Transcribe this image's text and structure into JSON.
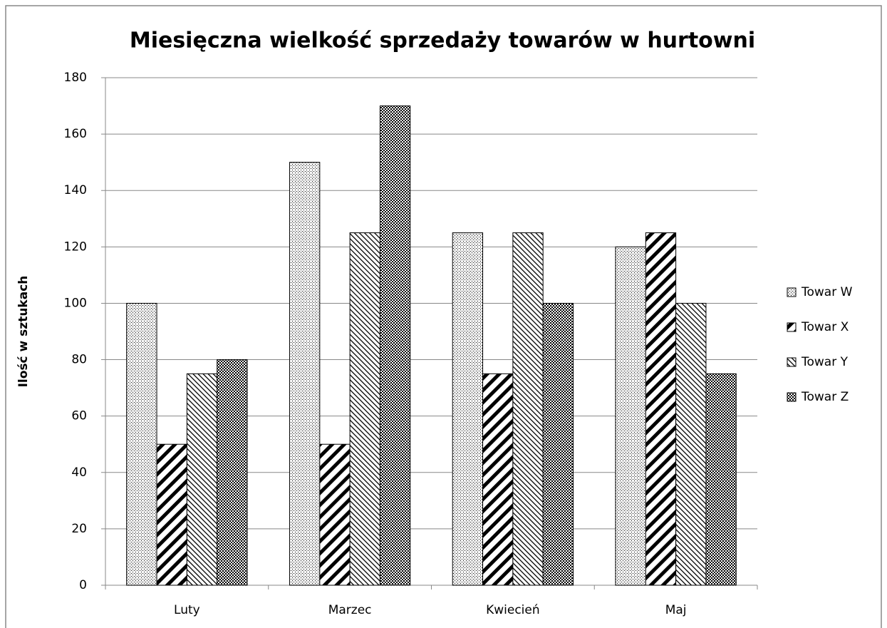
{
  "chart_data": {
    "type": "bar",
    "title": "Miesięczna wielkość sprzedaży towarów w hurtowni",
    "y_label": "Ilość w sztukach",
    "categories": [
      "Luty",
      "Marzec",
      "Kwiecień",
      "Maj"
    ],
    "series": [
      {
        "name": "Towar W",
        "color": "#000000",
        "pattern": "dots",
        "values": [
          100,
          150,
          125,
          120
        ]
      },
      {
        "name": "Towar X",
        "color": "#000000",
        "pattern": "wide-downward-diagonal",
        "values": [
          50,
          50,
          75,
          125
        ]
      },
      {
        "name": "Towar Y",
        "color": "#000000",
        "pattern": "light-upward-diagonal",
        "values": [
          75,
          125,
          125,
          100
        ]
      },
      {
        "name": "Towar Z",
        "color": "#000000",
        "pattern": "checker",
        "values": [
          80,
          170,
          100,
          75
        ]
      }
    ],
    "ylim": [
      0,
      180
    ],
    "yticks": [
      0,
      20,
      40,
      60,
      80,
      100,
      120,
      140,
      160,
      180
    ],
    "grid": true,
    "legend": "right"
  }
}
